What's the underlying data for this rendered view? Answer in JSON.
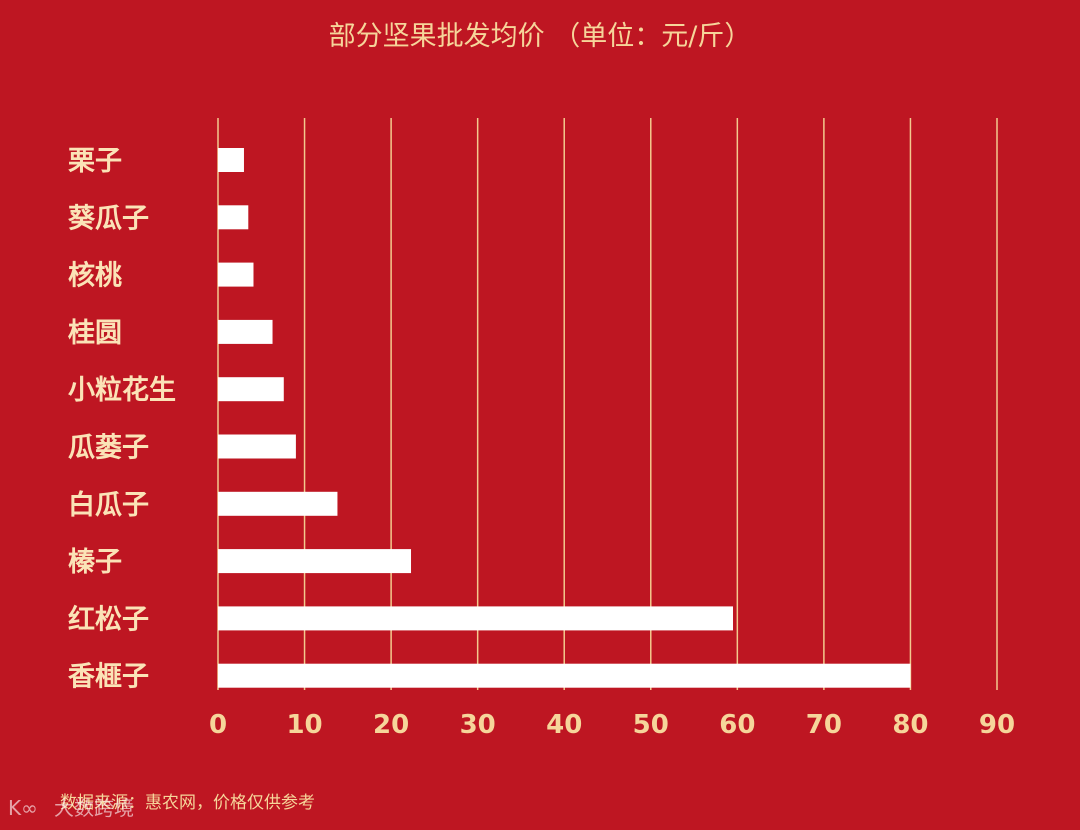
{
  "chart_data": {
    "type": "bar",
    "orientation": "horizontal",
    "title": "部分坚果批发均价 （单位：元/斤）",
    "xlabel": "",
    "ylabel": "",
    "categories": [
      "栗子",
      "葵瓜子",
      "核桃",
      "桂圆",
      "小粒花生",
      "瓜蒌子",
      "白瓜子",
      "榛子",
      "红松子",
      "香榧子"
    ],
    "values": [
      3.0,
      3.5,
      4.1,
      6.3,
      7.6,
      9.0,
      13.8,
      22.3,
      59.5,
      80.0
    ],
    "xlim": [
      0,
      90
    ],
    "xticks": [
      "0",
      "10",
      "20",
      "30",
      "40",
      "50",
      "60",
      "70",
      "80",
      "90"
    ],
    "grid": "vertical",
    "legend": "none"
  },
  "source_note": "数据来源：惠农网，价格仅供参考",
  "watermark": "大数跨境",
  "colors": {
    "background": "#be1622",
    "bar": "#ffffff",
    "gridline": "#f3c98e",
    "text": "#f6d59a"
  }
}
